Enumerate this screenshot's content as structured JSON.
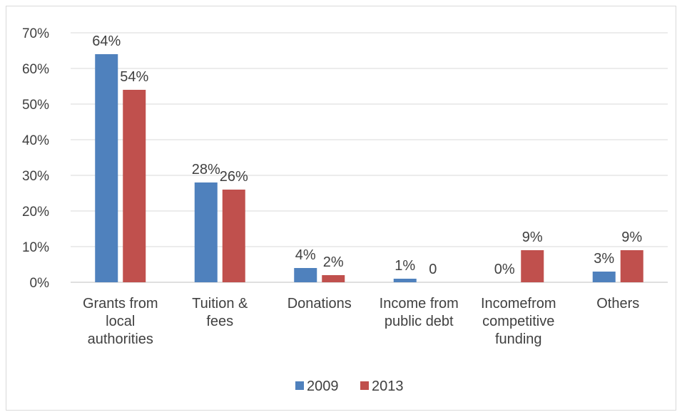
{
  "chart_data": {
    "type": "bar",
    "title": "",
    "xlabel": "",
    "ylabel": "",
    "ylim": [
      0,
      0.7
    ],
    "y_ticks": [
      "0%",
      "10%",
      "20%",
      "30%",
      "40%",
      "50%",
      "60%",
      "70%"
    ],
    "grid": true,
    "legend_position": "bottom",
    "categories": [
      [
        "Grants from",
        "local",
        "authorities"
      ],
      [
        "Tuition &",
        "fees"
      ],
      [
        "Donations"
      ],
      [
        "Income from",
        "public debt"
      ],
      [
        "Incomefrom",
        "competitive",
        "funding"
      ],
      [
        "Others"
      ]
    ],
    "series": [
      {
        "name": "2009",
        "color": "#4f81bd",
        "values": [
          0.64,
          0.28,
          0.04,
          0.01,
          0.0,
          0.03
        ],
        "labels": [
          "64%",
          "28%",
          "4%",
          "1%",
          "0%",
          "3%"
        ]
      },
      {
        "name": "2013",
        "color": "#c0504d",
        "values": [
          0.54,
          0.26,
          0.02,
          0.0,
          0.09,
          0.09
        ],
        "labels": [
          "54%",
          "26%",
          "2%",
          "0",
          "9%",
          "9%"
        ]
      }
    ]
  }
}
